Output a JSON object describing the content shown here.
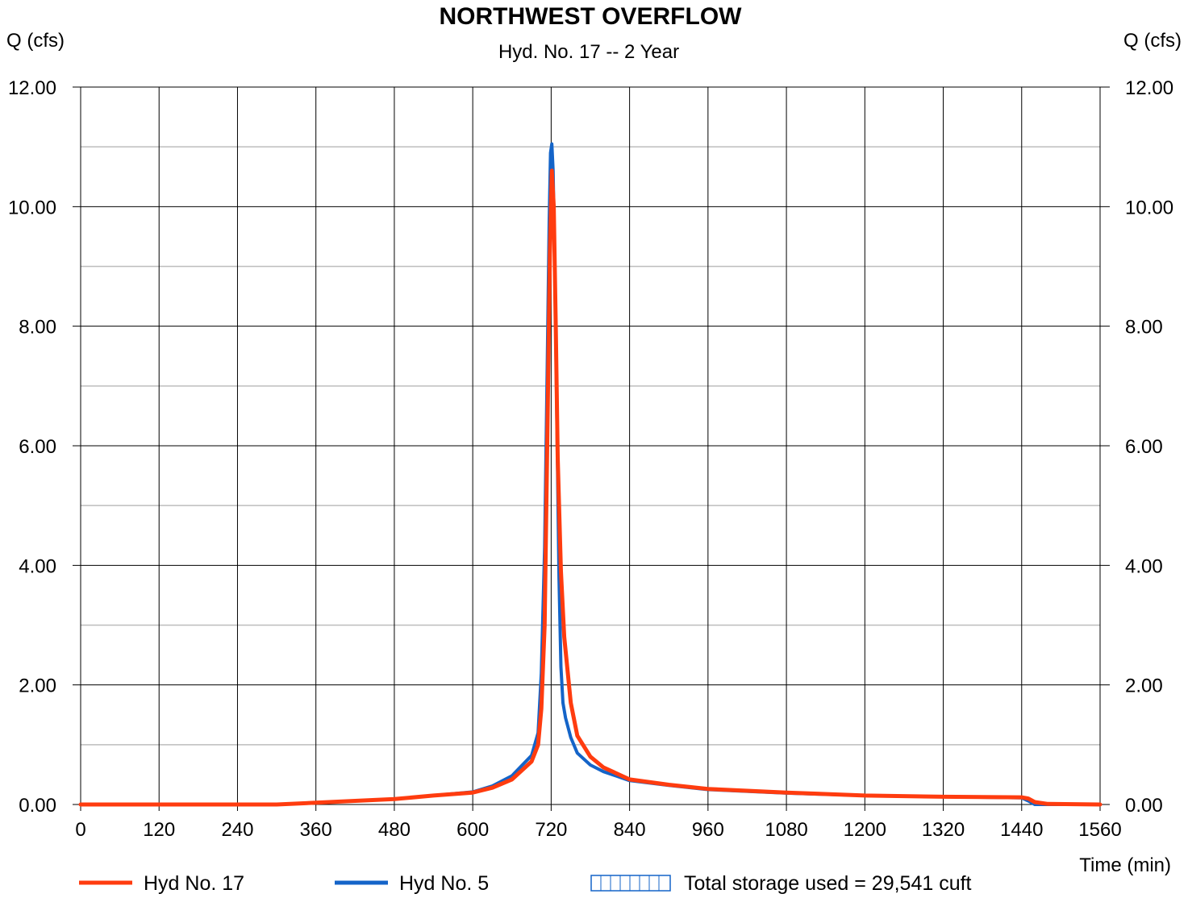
{
  "chart_data": {
    "type": "line",
    "title": "NORTHWEST OVERFLOW",
    "subtitle": "Hyd. No. 17 -- 2 Year",
    "ylabel_left": "Q (cfs)",
    "ylabel_right": "Q (cfs)",
    "xlabel": "Time (min)",
    "xlim": [
      0,
      1560
    ],
    "ylim": [
      0,
      12
    ],
    "x_ticks": [
      "0",
      "120",
      "240",
      "360",
      "480",
      "600",
      "720",
      "840",
      "960",
      "1080",
      "1200",
      "1320",
      "1440",
      "1560"
    ],
    "y_ticks": [
      "0.00",
      "2.00",
      "4.00",
      "6.00",
      "8.00",
      "10.00",
      "12.00"
    ],
    "grid": true,
    "legend_position": "bottom",
    "series": [
      {
        "name": "Hyd No. 17",
        "color": "#ff3c0f",
        "x": [
          0,
          300,
          360,
          420,
          480,
          540,
          600,
          630,
          660,
          690,
          700,
          705,
          710,
          714,
          718,
          721,
          724,
          727,
          730,
          735,
          740,
          750,
          760,
          780,
          800,
          840,
          900,
          960,
          1080,
          1200,
          1320,
          1440,
          1450,
          1460,
          1480,
          1560
        ],
        "y": [
          0.0,
          0.0,
          0.03,
          0.06,
          0.09,
          0.15,
          0.2,
          0.28,
          0.42,
          0.72,
          1.0,
          1.6,
          3.0,
          6.0,
          9.2,
          10.6,
          10.0,
          8.0,
          5.8,
          3.9,
          2.8,
          1.7,
          1.15,
          0.8,
          0.62,
          0.42,
          0.33,
          0.26,
          0.2,
          0.15,
          0.13,
          0.12,
          0.1,
          0.04,
          0.01,
          0.0
        ]
      },
      {
        "name": "Hyd No. 5",
        "color": "#1464c8",
        "x": [
          0,
          300,
          360,
          420,
          480,
          540,
          600,
          630,
          660,
          690,
          700,
          705,
          710,
          714,
          717,
          719,
          721,
          723,
          726,
          729,
          732,
          735,
          738,
          742,
          750,
          760,
          780,
          800,
          840,
          900,
          960,
          1080,
          1200,
          1320,
          1440,
          1450,
          1460,
          1470,
          1560
        ],
        "y": [
          0.0,
          0.0,
          0.03,
          0.06,
          0.09,
          0.15,
          0.21,
          0.31,
          0.48,
          0.82,
          1.2,
          2.2,
          4.3,
          7.3,
          9.8,
          10.9,
          11.05,
          10.6,
          8.7,
          6.2,
          3.8,
          2.3,
          1.7,
          1.45,
          1.12,
          0.86,
          0.66,
          0.55,
          0.4,
          0.32,
          0.25,
          0.19,
          0.15,
          0.13,
          0.11,
          0.06,
          0.0,
          0.0,
          0.0
        ]
      }
    ],
    "storage_legend": "Total storage used = 29,541 cuft",
    "storage_color": "#1464c8"
  }
}
